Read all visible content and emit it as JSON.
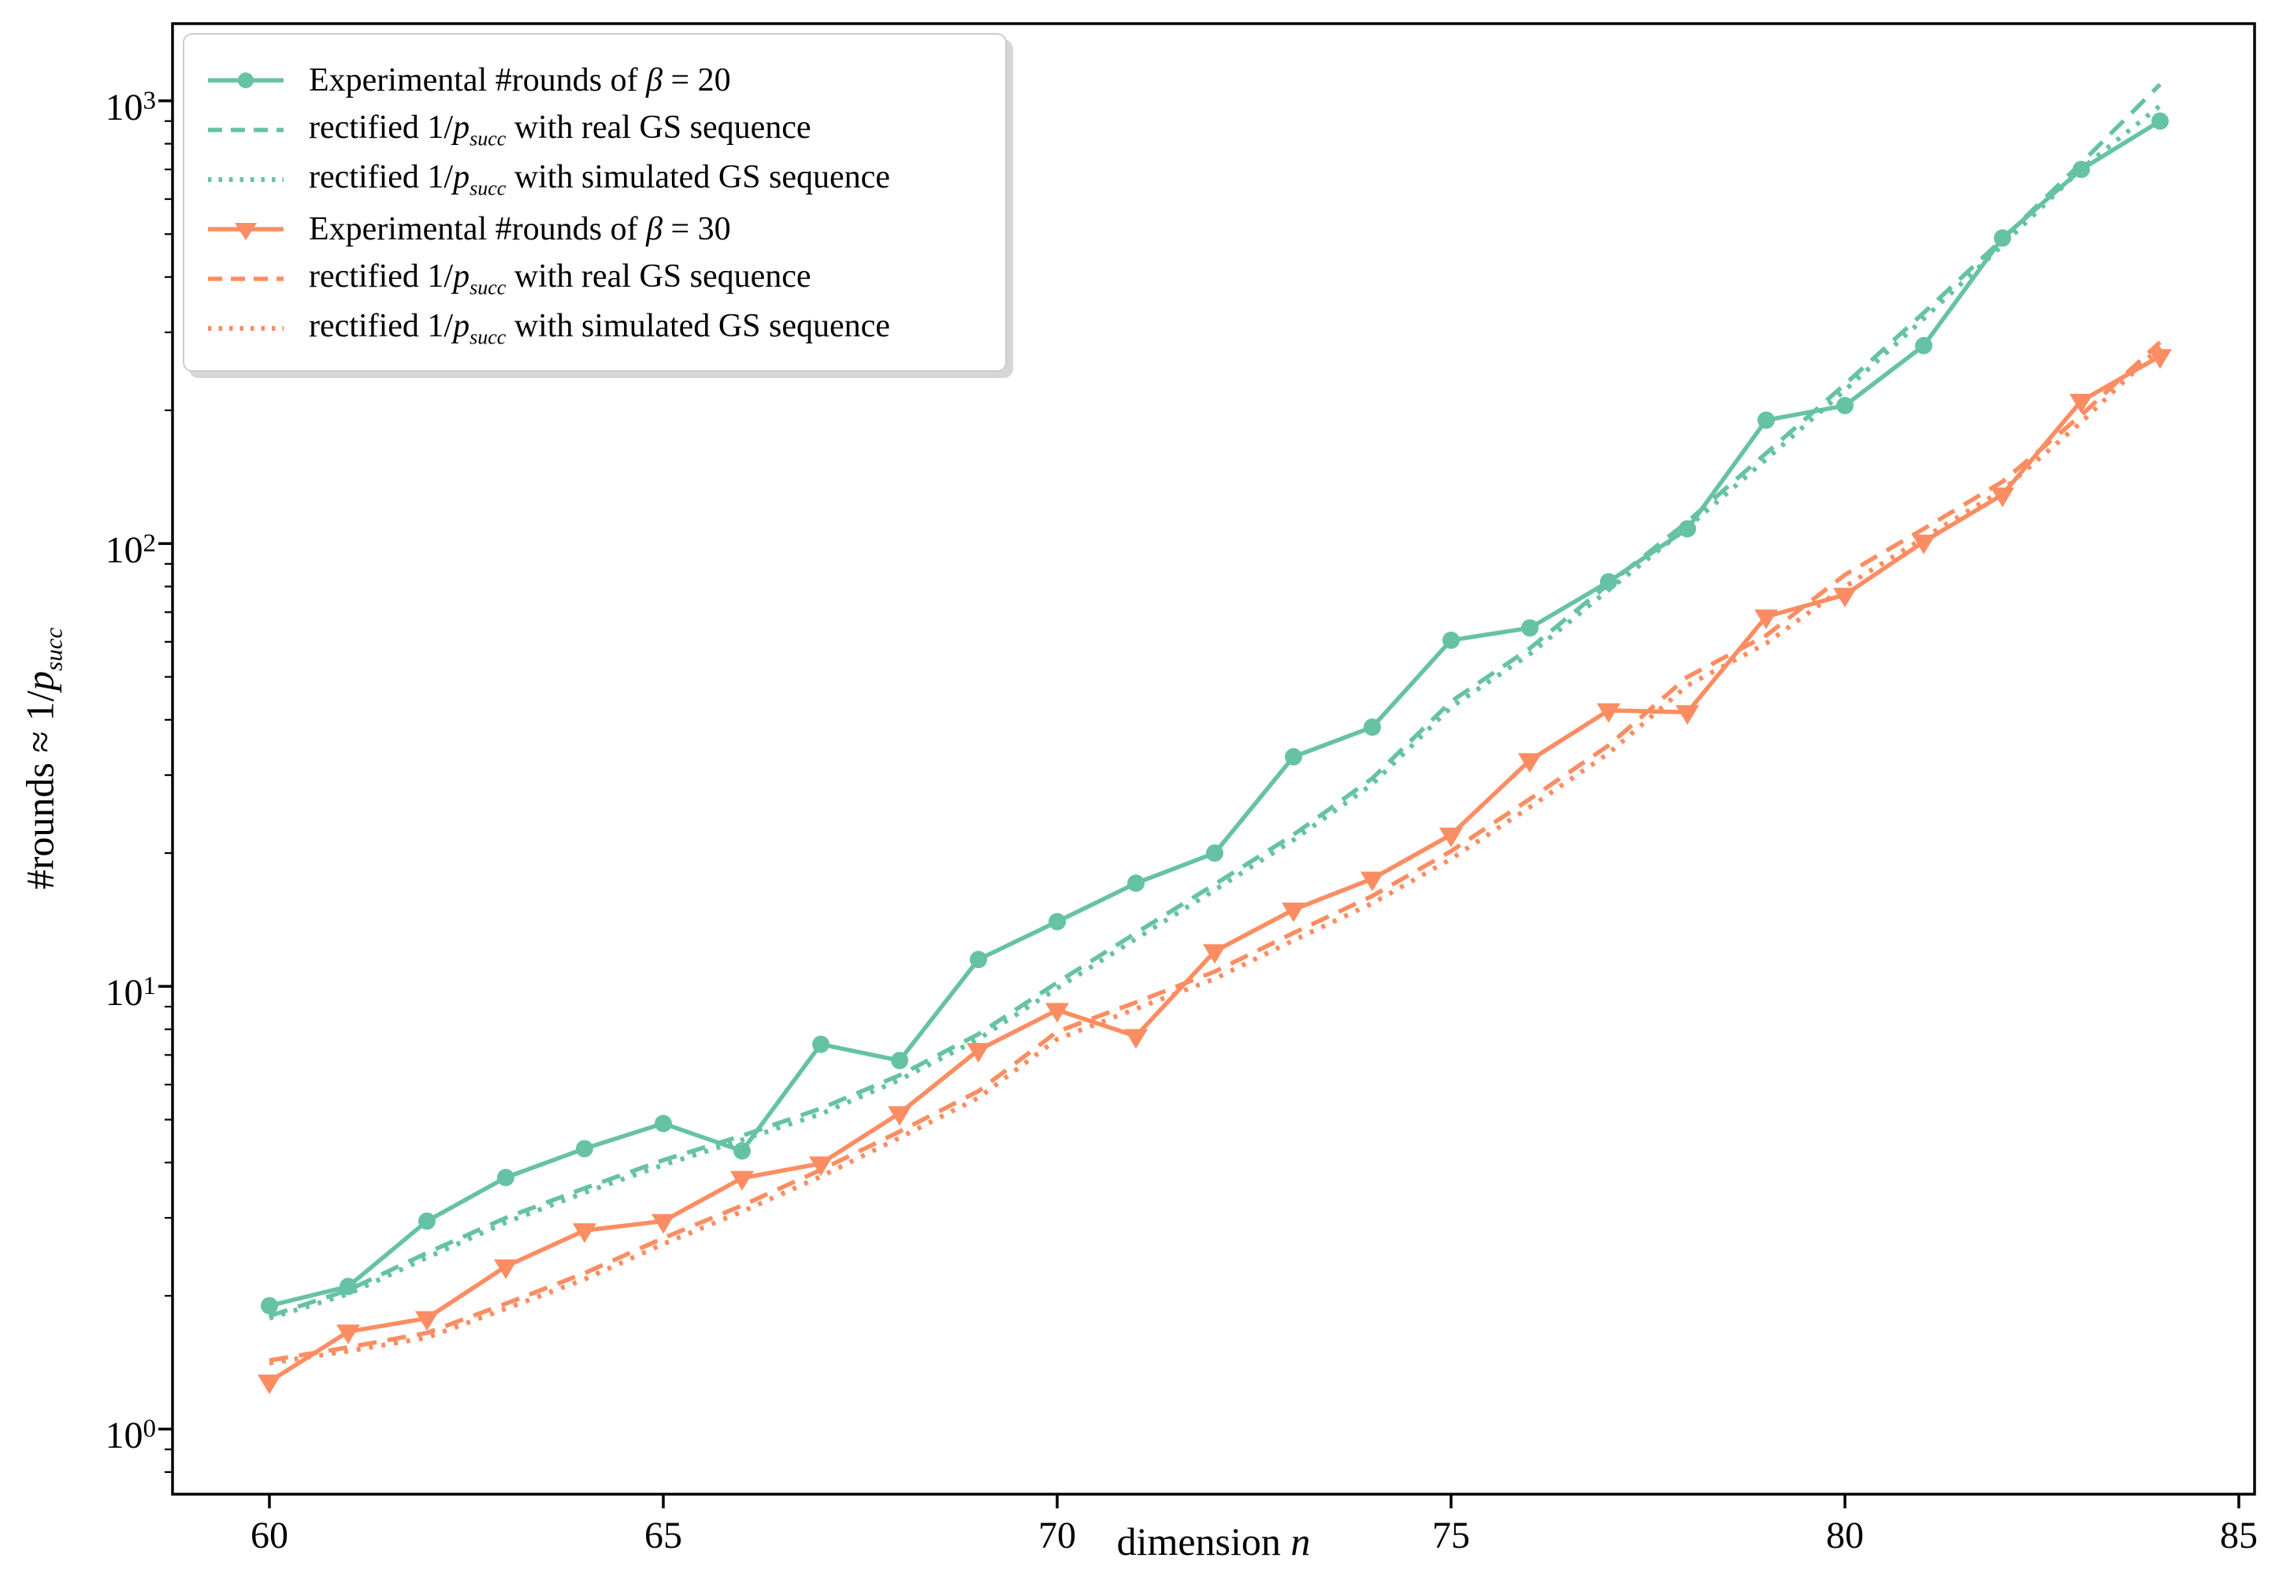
{
  "figure": {
    "background": "#ffffff",
    "spine_color": "#000000",
    "text_color": "#000000"
  },
  "axes": {
    "xlabel": "dimension n",
    "ylabel": "#rounds ≈ 1/p_succ",
    "yscale": "log",
    "xlim": [
      58.77,
      85.2
    ],
    "ylim": [
      0.713,
      1494
    ],
    "x_ticks": [
      60,
      65,
      70,
      75,
      80,
      85
    ],
    "y_ticks": [
      {
        "value": 1,
        "base": "10",
        "exp": "0"
      },
      {
        "value": 10,
        "base": "10",
        "exp": "1"
      },
      {
        "value": 100,
        "base": "10",
        "exp": "2"
      },
      {
        "value": 1000,
        "base": "10",
        "exp": "3"
      }
    ]
  },
  "colors": {
    "beta20": "#66C2A5",
    "beta30": "#FC8D62"
  },
  "chart_data": {
    "type": "line",
    "x": [
      60,
      61,
      62,
      63,
      64,
      65,
      66,
      67,
      68,
      69,
      70,
      71,
      72,
      73,
      74,
      75,
      76,
      77,
      78,
      79,
      80,
      81,
      82,
      83,
      84
    ],
    "series": [
      {
        "name": "Experimental #rounds of β = 20",
        "color": "#66C2A5",
        "dash": "solid",
        "marker": "circle",
        "values": [
          1.9,
          2.1,
          2.95,
          3.7,
          4.3,
          4.9,
          4.25,
          7.4,
          6.8,
          11.5,
          14.0,
          17.1,
          20.0,
          33.0,
          38.5,
          60.5,
          64.5,
          82.0,
          108.0,
          190.0,
          205.0,
          280.0,
          490.0,
          700.0,
          900.0
        ]
      },
      {
        "name": "rectified 1/p_succ with real GS sequence",
        "color": "#66C2A5",
        "dash": "dashed",
        "marker": null,
        "values": [
          1.8,
          2.06,
          2.5,
          3.0,
          3.5,
          4.05,
          4.6,
          5.3,
          6.3,
          7.8,
          10.2,
          13.2,
          17.0,
          22.0,
          29.5,
          44.0,
          58.0,
          81.0,
          112.0,
          160.0,
          229.0,
          332.0,
          487.0,
          724.0,
          1089.0
        ]
      },
      {
        "name": "rectified 1/p_succ with simulated GS sequence",
        "color": "#66C2A5",
        "dash": "dotted",
        "marker": null,
        "values": [
          1.78,
          2.02,
          2.44,
          2.93,
          3.42,
          3.95,
          4.5,
          5.15,
          6.15,
          7.6,
          9.9,
          12.8,
          16.5,
          21.4,
          28.6,
          42.7,
          56.3,
          78.6,
          108.7,
          155.0,
          222.0,
          322.0,
          472.0,
          702.0,
          975.0
        ]
      },
      {
        "name": "Experimental #rounds of β = 30",
        "color": "#FC8D62",
        "dash": "solid",
        "marker": "triangle-down",
        "values": [
          1.28,
          1.66,
          1.78,
          2.33,
          2.81,
          2.95,
          3.69,
          3.98,
          5.17,
          7.18,
          8.84,
          7.72,
          12.0,
          14.9,
          17.5,
          22.0,
          32.4,
          42.0,
          41.6,
          68.4,
          76.6,
          101.0,
          129.0,
          210.0,
          265.0
        ]
      },
      {
        "name": "rectified 1/p_succ with real GS sequence",
        "color": "#FC8D62",
        "dash": "dashed",
        "marker": null,
        "values": [
          1.43,
          1.53,
          1.65,
          1.92,
          2.25,
          2.7,
          3.2,
          3.85,
          4.7,
          5.8,
          7.9,
          9.2,
          10.8,
          13.2,
          16.0,
          20.2,
          26.5,
          35.0,
          50.0,
          62.0,
          85.0,
          108.0,
          138.0,
          195.0,
          285.0
        ]
      },
      {
        "name": "rectified 1/p_succ with simulated GS sequence",
        "color": "#FC8D62",
        "dash": "dotted",
        "marker": null,
        "values": [
          1.41,
          1.5,
          1.61,
          1.87,
          2.18,
          2.62,
          3.1,
          3.72,
          4.55,
          5.6,
          7.6,
          8.9,
          10.4,
          12.7,
          15.4,
          19.4,
          25.4,
          33.6,
          47.8,
          59.5,
          80.0,
          103.0,
          132.0,
          188.0,
          278.0
        ]
      }
    ],
    "legend_position": "upper-left",
    "grid": false
  }
}
